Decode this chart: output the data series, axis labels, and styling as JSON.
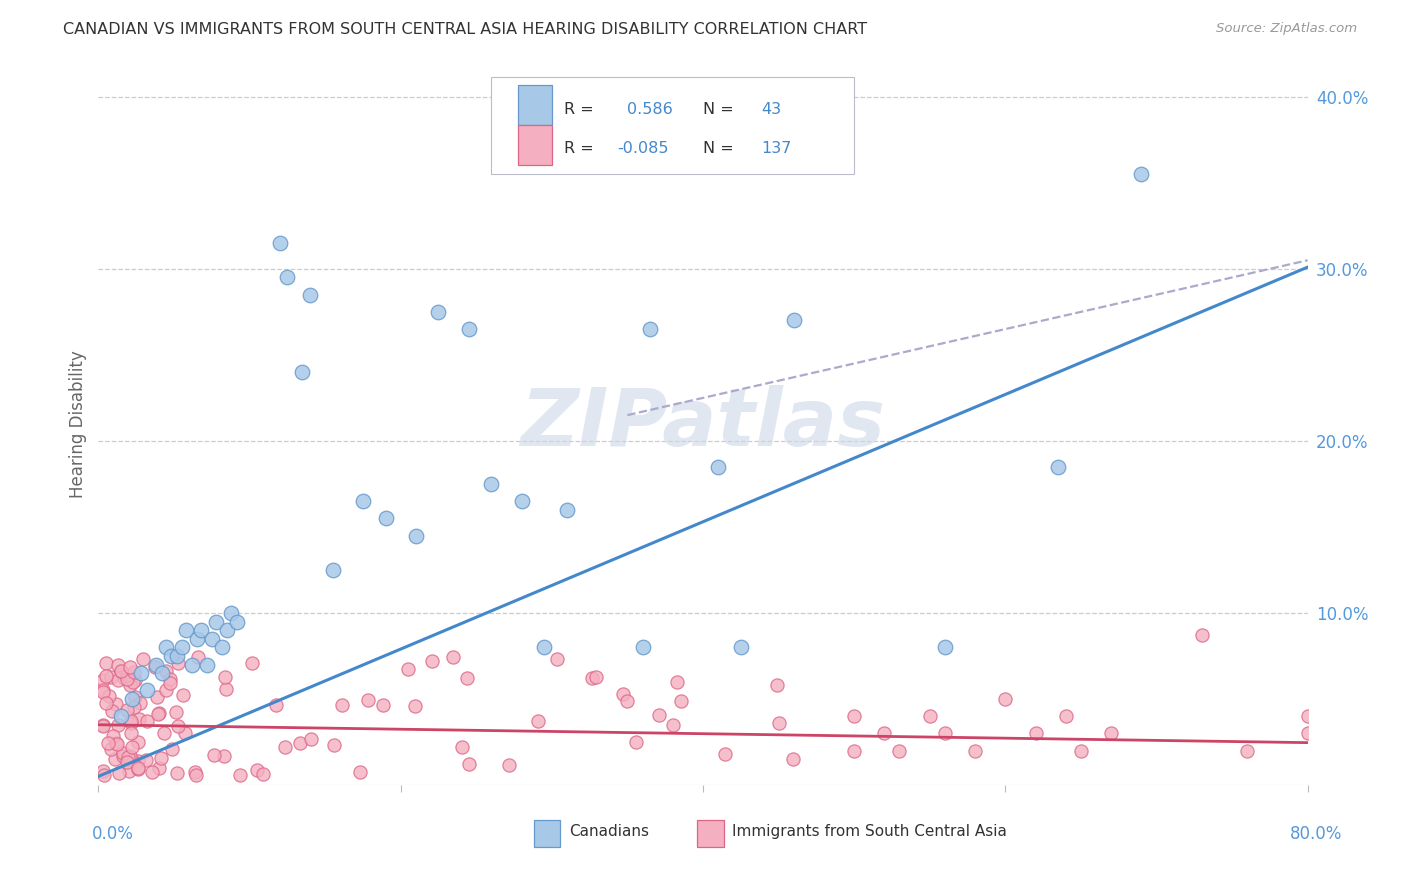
{
  "title": "CANADIAN VS IMMIGRANTS FROM SOUTH CENTRAL ASIA HEARING DISABILITY CORRELATION CHART",
  "source": "Source: ZipAtlas.com",
  "ylabel": "Hearing Disability",
  "xlim": [
    0,
    0.8
  ],
  "ylim": [
    0,
    0.42
  ],
  "canadian_fill": "#a8c8e8",
  "canadian_edge": "#6699cc",
  "immigrant_fill": "#f4b0c0",
  "immigrant_edge": "#dd6688",
  "canadian_line_color": "#4488cc",
  "immigrant_line_color": "#cc4466",
  "dash_line_color": "#aaaacc",
  "background_color": "#ffffff",
  "grid_color": "#cccccc",
  "watermark_color": "#ccd8e8",
  "title_color": "#333333",
  "source_color": "#999999",
  "axis_label_color": "#5599dd",
  "ylabel_color": "#666666",
  "legend_text_color": "#333333",
  "legend_value_color": "#4488cc"
}
